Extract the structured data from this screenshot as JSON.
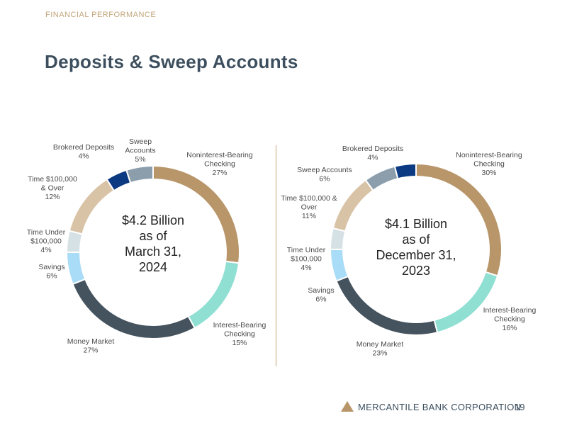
{
  "header": {
    "section": "FINANCIAL PERFORMANCE",
    "title": "Deposits & Sweep Accounts"
  },
  "footer": {
    "company": "MERCANTILE BANK CORPORATION",
    "page_number": "19"
  },
  "colors": {
    "noninterest": "#b8966a",
    "interest": "#8fdfd3",
    "money_market": "#45535f",
    "savings": "#a9dcf7",
    "time_under": "#d6e1e5",
    "time_over": "#d8c3a6",
    "brokered": "#0b3a82",
    "sweep": "#8c9eac"
  },
  "chart_data": [
    {
      "type": "pie",
      "title": "$4.2 Billion as of March 31, 2024",
      "center_lines": [
        "$4.2 Billion",
        "as of",
        "March 31,",
        "2024"
      ],
      "slices": [
        {
          "key": "noninterest",
          "label_lines": [
            "Noninterest-Bearing",
            "Checking"
          ],
          "pct_text": "27%",
          "value": 27
        },
        {
          "key": "interest",
          "label_lines": [
            "Interest-Bearing",
            "Checking"
          ],
          "pct_text": "15%",
          "value": 15
        },
        {
          "key": "money_market",
          "label_lines": [
            "Money Market"
          ],
          "pct_text": "27%",
          "value": 27
        },
        {
          "key": "savings",
          "label_lines": [
            "Savings"
          ],
          "pct_text": "6%",
          "value": 6
        },
        {
          "key": "time_under",
          "label_lines": [
            "Time Under",
            "$100,000"
          ],
          "pct_text": "4%",
          "value": 4
        },
        {
          "key": "time_over",
          "label_lines": [
            "Time $100,000",
            "& Over"
          ],
          "pct_text": "12%",
          "value": 12
        },
        {
          "key": "brokered",
          "label_lines": [
            "Brokered Deposits"
          ],
          "pct_text": "4%",
          "value": 4
        },
        {
          "key": "sweep",
          "label_lines": [
            "Sweep",
            "Accounts"
          ],
          "pct_text": "5%",
          "value": 5
        }
      ]
    },
    {
      "type": "pie",
      "title": "$4.1 Billion as of December 31, 2023",
      "center_lines": [
        "$4.1 Billion",
        "as of",
        "December 31,",
        "2023"
      ],
      "slices": [
        {
          "key": "noninterest",
          "label_lines": [
            "Noninterest-Bearing",
            "Checking"
          ],
          "pct_text": "30%",
          "value": 30
        },
        {
          "key": "interest",
          "label_lines": [
            "Interest-Bearing",
            "Checking"
          ],
          "pct_text": "16%",
          "value": 16
        },
        {
          "key": "money_market",
          "label_lines": [
            "Money Market"
          ],
          "pct_text": "23%",
          "value": 23
        },
        {
          "key": "savings",
          "label_lines": [
            "Savings"
          ],
          "pct_text": "6%",
          "value": 6
        },
        {
          "key": "time_under",
          "label_lines": [
            "Time Under",
            "$100,000"
          ],
          "pct_text": "4%",
          "value": 4
        },
        {
          "key": "time_over",
          "label_lines": [
            "Time $100,000 &",
            "Over"
          ],
          "pct_text": "11%",
          "value": 11
        },
        {
          "key": "sweep",
          "label_lines": [
            "Sweep Accounts"
          ],
          "pct_text": "6%",
          "value": 6
        },
        {
          "key": "brokered",
          "label_lines": [
            "Brokered Deposits"
          ],
          "pct_text": "4%",
          "value": 4
        }
      ]
    }
  ]
}
